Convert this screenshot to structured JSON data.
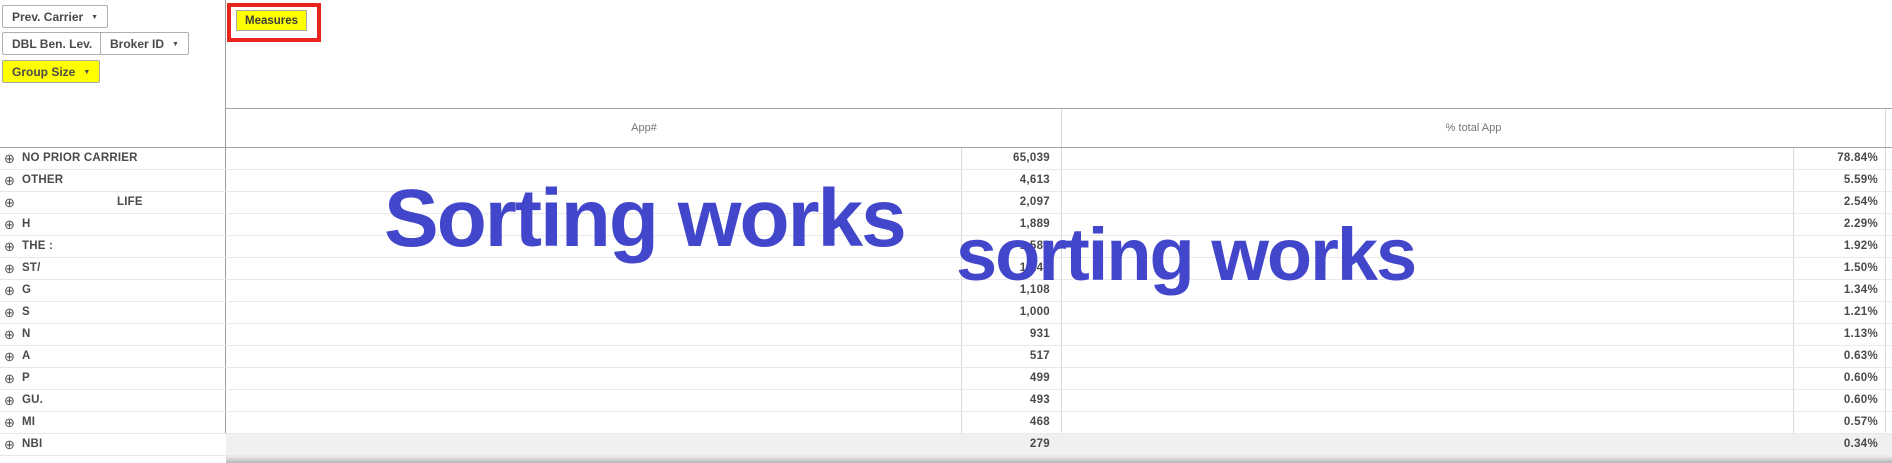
{
  "filters": {
    "prev_carrier": "Prev. Carrier",
    "dbl_ben_lev": "DBL Ben. Lev.",
    "broker_id": "Broker ID",
    "group_size": "Group Size",
    "dropdown_arrow": "▼"
  },
  "measures_button": {
    "label": "Measures"
  },
  "annotations": {
    "overlay1": "Sorting works",
    "overlay2": "sorting works",
    "overlay_color": "#4246cb",
    "highlight_color": "#ffff00",
    "red_box_color": "#e8251d"
  },
  "table": {
    "expand_icon": "⊕",
    "columns": [
      {
        "label": "App#"
      },
      {
        "label": "% total App"
      }
    ],
    "rows": [
      {
        "label": "NO PRIOR CARRIER",
        "app": "65,039",
        "pct": "78.84%"
      },
      {
        "label": "OTHER",
        "app": "4,613",
        "pct": "5.59%"
      },
      {
        "label": "LIFE",
        "app": "2,097",
        "pct": "2.54%",
        "indent": true
      },
      {
        "label": "H",
        "app": "1,889",
        "pct": "2.29%"
      },
      {
        "label": "THE :",
        "app": "1,583",
        "pct": "1.92%"
      },
      {
        "label": "ST/",
        "app": "1,240",
        "pct": "1.50%"
      },
      {
        "label": "G",
        "app": "1,108",
        "pct": "1.34%"
      },
      {
        "label": "S",
        "app": "1,000",
        "pct": "1.21%"
      },
      {
        "label": "N",
        "app": "931",
        "pct": "1.13%"
      },
      {
        "label": "A",
        "app": "517",
        "pct": "0.63%"
      },
      {
        "label": "P",
        "app": "499",
        "pct": "0.60%"
      },
      {
        "label": "GU.",
        "app": "493",
        "pct": "0.60%"
      },
      {
        "label": "MI",
        "app": "468",
        "pct": "0.57%"
      },
      {
        "label": "NBI",
        "app": "279",
        "pct": "0.34%",
        "shaded": true
      }
    ]
  }
}
